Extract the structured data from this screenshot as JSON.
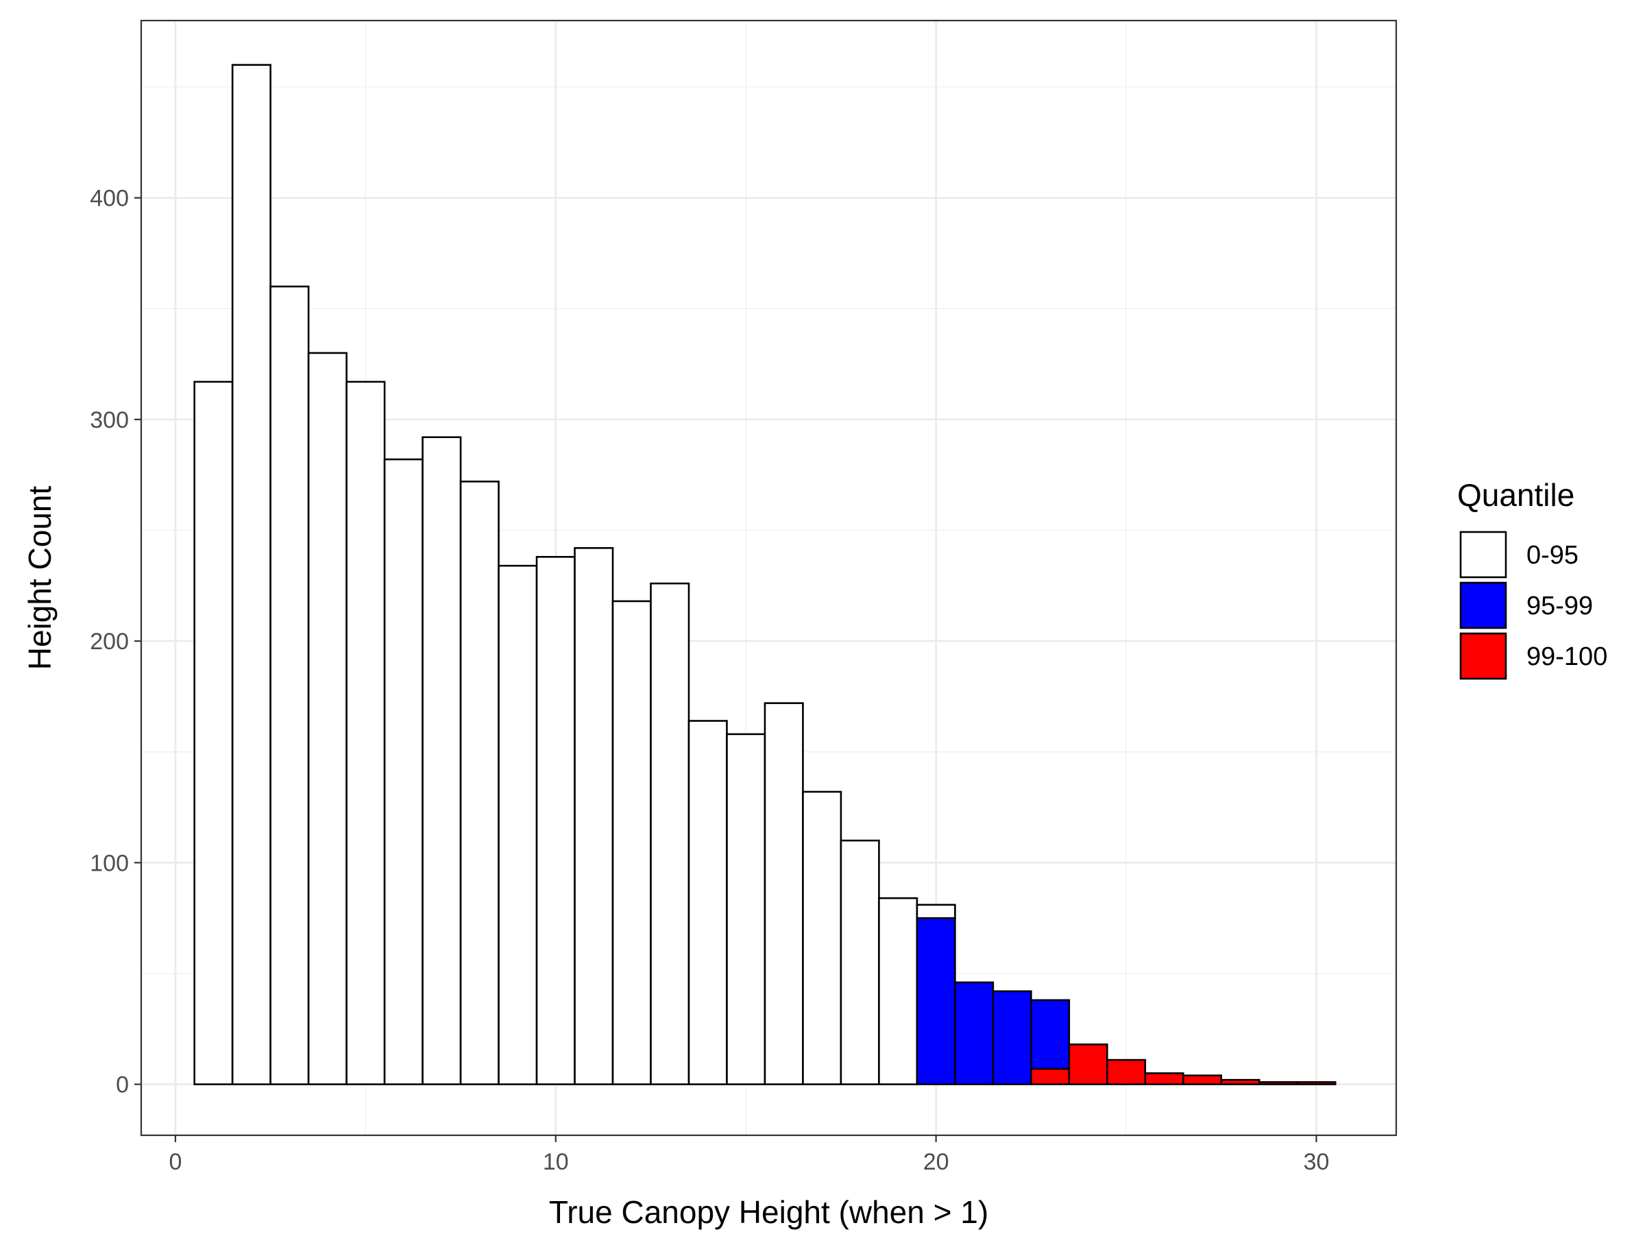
{
  "chart_data": {
    "type": "bar",
    "stacked": true,
    "xlabel": "True Canopy Height (when > 1)",
    "ylabel": "Height Count",
    "xlim": [
      -0.9,
      32.1
    ],
    "ylim": [
      -23,
      480
    ],
    "x_ticks": [
      0,
      10,
      20,
      30
    ],
    "x_tick_labels": [
      "0",
      "10",
      "20",
      "30"
    ],
    "y_ticks": [
      0,
      100,
      200,
      300,
      400
    ],
    "y_tick_labels": [
      "0",
      "100",
      "200",
      "300",
      "400"
    ],
    "grid": true,
    "bin_width": 1,
    "bin_centers": [
      1,
      2,
      3,
      4,
      5,
      6,
      7,
      8,
      9,
      10,
      11,
      12,
      13,
      14,
      15,
      16,
      17,
      18,
      19,
      20,
      21,
      22,
      23,
      24,
      25,
      26,
      27,
      28,
      29,
      30
    ],
    "series": [
      {
        "name": "99-100",
        "color": "#ff0000",
        "values": [
          0,
          0,
          0,
          0,
          0,
          0,
          0,
          0,
          0,
          0,
          0,
          0,
          0,
          0,
          0,
          0,
          0,
          0,
          0,
          0,
          0,
          0,
          7,
          18,
          11,
          5,
          4,
          2,
          1,
          1
        ]
      },
      {
        "name": "95-99",
        "color": "#0000ff",
        "values": [
          0,
          0,
          0,
          0,
          0,
          0,
          0,
          0,
          0,
          0,
          0,
          0,
          0,
          0,
          0,
          0,
          0,
          0,
          0,
          75,
          46,
          42,
          31,
          0,
          0,
          0,
          0,
          0,
          0,
          0
        ]
      },
      {
        "name": "0-95",
        "color": "#ffffff",
        "values": [
          317,
          460,
          360,
          330,
          317,
          282,
          292,
          272,
          234,
          238,
          242,
          218,
          226,
          164,
          158,
          172,
          132,
          110,
          84,
          6,
          0,
          0,
          0,
          0,
          0,
          0,
          0,
          0,
          0,
          0
        ]
      }
    ],
    "legend": {
      "title": "Quantile",
      "position": "right",
      "entries": [
        {
          "label": "0-95",
          "color": "#ffffff"
        },
        {
          "label": "95-99",
          "color": "#0000ff"
        },
        {
          "label": "99-100",
          "color": "#ff0000"
        }
      ]
    }
  }
}
